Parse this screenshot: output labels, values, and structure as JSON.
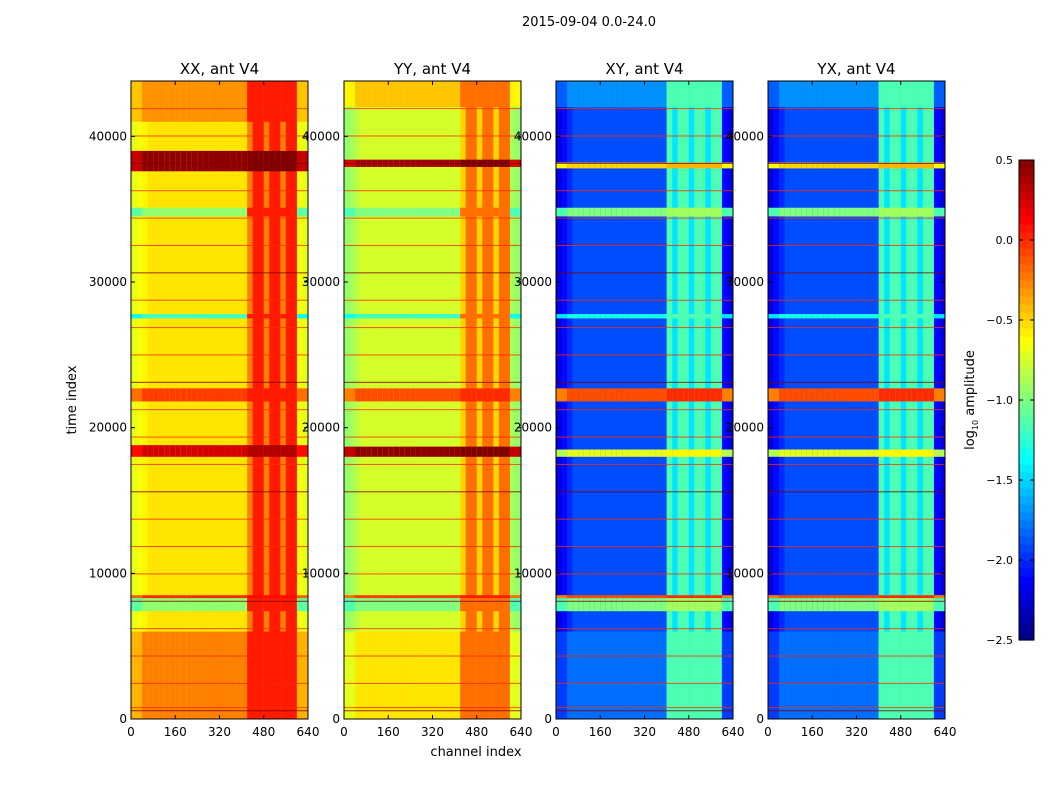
{
  "chart_data": {
    "type": "heatmap",
    "title": "2015-09-04 0.0-24.0",
    "xlabel": "channel index",
    "ylabel": "time index",
    "xlim": [
      0,
      640
    ],
    "ylim": [
      0,
      43800
    ],
    "xticks": [
      0,
      160,
      320,
      480,
      640
    ],
    "yticks": [
      0,
      10000,
      20000,
      30000,
      40000
    ],
    "colorbar": {
      "label": "log10 amplitude",
      "label_base": "log",
      "label_sub": "10",
      "label_rest": " amplitude",
      "range": [
        -2.5,
        0.5
      ],
      "ticks": [
        -2.5,
        -2.0,
        -1.5,
        -1.0,
        -0.5,
        0.0,
        0.5
      ],
      "colormap": "jet"
    },
    "panels": [
      {
        "title": "XX, ant V4",
        "base": -0.55,
        "edge": -0.7,
        "band_channels": [
          410,
          600
        ],
        "band_value": -0.05,
        "stripes": [
          [
            0,
            6000,
            -0.25
          ],
          [
            7400,
            8300,
            -0.95
          ],
          [
            8300,
            8500,
            0.0
          ],
          [
            18000,
            18800,
            0.25
          ],
          [
            21800,
            22700,
            -0.05
          ],
          [
            27500,
            27800,
            -1.2
          ],
          [
            34500,
            35100,
            -0.95
          ],
          [
            37600,
            39000,
            0.45
          ],
          [
            41000,
            43800,
            -0.3
          ]
        ]
      },
      {
        "title": "YY, ant V4",
        "base": -0.75,
        "edge": -0.95,
        "band_channels": [
          410,
          600
        ],
        "band_value": -0.3,
        "stripes": [
          [
            0,
            6000,
            -0.55
          ],
          [
            7400,
            8300,
            -1.0
          ],
          [
            8300,
            8500,
            -0.05
          ],
          [
            18000,
            18700,
            0.45
          ],
          [
            21800,
            22700,
            -0.1
          ],
          [
            27500,
            27800,
            -1.2
          ],
          [
            34500,
            35100,
            -1.0
          ],
          [
            37900,
            38400,
            0.4
          ],
          [
            42000,
            43800,
            -0.45
          ]
        ]
      },
      {
        "title": "XY, ant V4",
        "base": -1.9,
        "edge": -2.2,
        "band_channels": [
          400,
          600
        ],
        "band_value": -1.25,
        "stripes": [
          [
            0,
            6000,
            -1.8
          ],
          [
            7400,
            8300,
            -1.0
          ],
          [
            8300,
            8500,
            -0.1
          ],
          [
            18000,
            18500,
            -0.7
          ],
          [
            21800,
            22700,
            -0.1
          ],
          [
            27500,
            27800,
            -1.3
          ],
          [
            34500,
            35100,
            -1.0
          ],
          [
            37800,
            38200,
            -0.5
          ],
          [
            42000,
            43800,
            -1.7
          ]
        ]
      },
      {
        "title": "YX, ant V4",
        "base": -1.9,
        "edge": -2.2,
        "band_channels": [
          400,
          600
        ],
        "band_value": -1.25,
        "stripes": [
          [
            0,
            6000,
            -1.8
          ],
          [
            7400,
            8300,
            -1.0
          ],
          [
            8300,
            8500,
            -0.1
          ],
          [
            18000,
            18500,
            -0.7
          ],
          [
            21800,
            22700,
            -0.1
          ],
          [
            27500,
            27800,
            -1.3
          ],
          [
            34500,
            35100,
            -1.0
          ],
          [
            37800,
            38200,
            -0.5
          ],
          [
            42000,
            43800,
            -1.7
          ]
        ]
      }
    ]
  }
}
